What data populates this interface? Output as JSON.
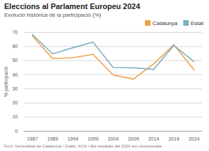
{
  "chart_data": {
    "type": "line",
    "title": "Eleccions al Parlament Europeu 2024",
    "subtitle": "Evolució històrica de la participació (%)",
    "y_label": "% participació",
    "caption": "Font: Generalitat de Catalunya / Gràfic: ACN • Els resultats del 2024 són provisionals",
    "categories": [
      "1987",
      "1989",
      "1994",
      "1999",
      "2004",
      "2009",
      "2014",
      "2019",
      "2024"
    ],
    "series": [
      {
        "name": "Catalunya",
        "color": "#f0a04b",
        "values": [
          67.5,
          51.5,
          52,
          54.5,
          39.8,
          36.9,
          47.6,
          61.2,
          43.5
        ]
      },
      {
        "name": "Estat",
        "color": "#7fb1c2",
        "values": [
          68.5,
          54.7,
          59.1,
          63.1,
          45.1,
          44.9,
          43.8,
          60.7,
          49.2
        ]
      }
    ],
    "ylim": [
      0,
      70
    ],
    "yticks": [
      0,
      10,
      20,
      30,
      40,
      50,
      60,
      70
    ],
    "grid": true,
    "legend": "top-right"
  }
}
